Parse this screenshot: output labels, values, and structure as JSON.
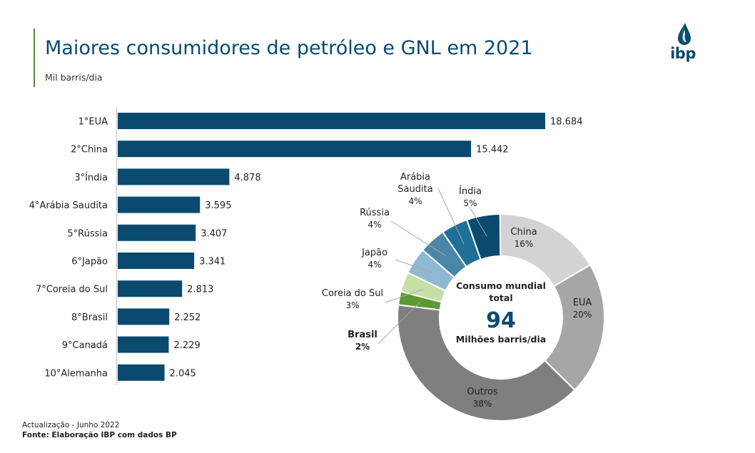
{
  "header": {
    "title": "Maiores consumidores de petróleo e GNL em 2021",
    "subtitle": "Mil barris/dia",
    "logo_text": "ibp"
  },
  "footer": {
    "update": "Actualização - Junho 2022",
    "source": "Fonte: Elaboração IBP com dados BP"
  },
  "chart_data": [
    {
      "type": "bar",
      "orientation": "horizontal",
      "categories": [
        "1°EUA",
        "2°China",
        "3°Índia",
        "4°Arábia Saudita",
        "5°Rússia",
        "6°Japão",
        "7°Coreia do Sul",
        "8°Brasil",
        "9°Canadá",
        "10°Alemanha"
      ],
      "values": [
        18684,
        15442,
        4878,
        3595,
        3407,
        3341,
        2813,
        2252,
        2229,
        2045
      ],
      "value_labels": [
        "18.684",
        "15.442",
        "4.878",
        "3.595",
        "3.407",
        "3.341",
        "2.813",
        "2.252",
        "2.229",
        "2.045"
      ],
      "color": "#0b4a6f",
      "xlim": [
        0,
        18684
      ],
      "grid": false,
      "legend": "none"
    },
    {
      "type": "pie",
      "donut": true,
      "center_text": {
        "line1": "Consumo mundial",
        "line2": "total",
        "value": "94",
        "unit": "Milhões barris/dia"
      },
      "slices": [
        {
          "label_lines": [
            "China"
          ],
          "percent": 16,
          "percent_label": "16%",
          "color": "#d3d3d3",
          "bold": false
        },
        {
          "label_lines": [
            "EUA"
          ],
          "percent": 20,
          "percent_label": "20%",
          "color": "#a6a6a6",
          "bold": false
        },
        {
          "label_lines": [
            "Outros"
          ],
          "percent": 38,
          "percent_label": "38%",
          "color": "#7f7f7f",
          "bold": false
        },
        {
          "label_lines": [
            "Brasil"
          ],
          "percent": 2,
          "percent_label": "2%",
          "color": "#5a9a32",
          "bold": true
        },
        {
          "label_lines": [
            "Coreia do Sul"
          ],
          "percent": 3,
          "percent_label": "3%",
          "color": "#c5e0a5",
          "bold": false
        },
        {
          "label_lines": [
            "Japão"
          ],
          "percent": 4,
          "percent_label": "4%",
          "color": "#8fb9d3",
          "bold": false
        },
        {
          "label_lines": [
            "Rússia"
          ],
          "percent": 4,
          "percent_label": "4%",
          "color": "#4a86a8",
          "bold": false
        },
        {
          "label_lines": [
            "Arábia",
            "Saudita"
          ],
          "percent": 4,
          "percent_label": "4%",
          "color": "#206f98",
          "bold": false
        },
        {
          "label_lines": [
            "Índia"
          ],
          "percent": 5,
          "percent_label": "5%",
          "color": "#0b4a6f",
          "bold": false
        }
      ],
      "legend": "none"
    }
  ]
}
